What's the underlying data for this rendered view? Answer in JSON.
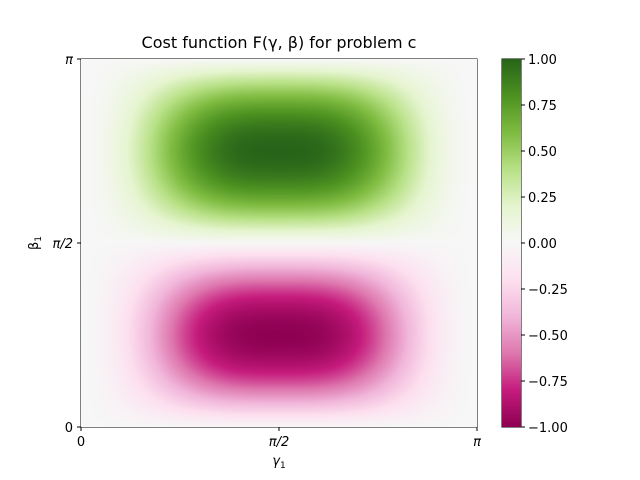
{
  "chart_data": {
    "type": "heatmap",
    "title": "Cost function F(γ, β) for problem c",
    "xlabel": "γ",
    "xlabel_sub": "1",
    "ylabel": "β",
    "ylabel_sub": "1",
    "xlim": [
      0,
      3.14159
    ],
    "ylim": [
      0,
      3.14159
    ],
    "x_ticks": [
      {
        "value": 0,
        "label": "0"
      },
      {
        "value": 1.5708,
        "label": "π/2"
      },
      {
        "value": 3.14159,
        "label": "π"
      }
    ],
    "y_ticks": [
      {
        "value": 0,
        "label": "0"
      },
      {
        "value": 1.5708,
        "label": "π/2"
      },
      {
        "value": 3.14159,
        "label": "π"
      }
    ],
    "colormap": "PiYG",
    "colormap_stops": [
      "#8e0152",
      "#c51b7d",
      "#de77ae",
      "#f1b6da",
      "#fde0ef",
      "#f7f7f7",
      "#e6f5d0",
      "#b8e186",
      "#7fbc41",
      "#4d9221",
      "#276419"
    ],
    "vmin": -1.0,
    "vmax": 1.0,
    "colorbar_ticks": [
      {
        "value": 1.0,
        "label": "1.00"
      },
      {
        "value": 0.75,
        "label": "0.75"
      },
      {
        "value": 0.5,
        "label": "0.50"
      },
      {
        "value": 0.25,
        "label": "0.25"
      },
      {
        "value": 0.0,
        "label": "0.00"
      },
      {
        "value": -0.25,
        "label": "−0.25"
      },
      {
        "value": -0.5,
        "label": "−0.50"
      },
      {
        "value": -0.75,
        "label": "−0.75"
      },
      {
        "value": -1.0,
        "label": "−1.00"
      }
    ],
    "extrema": [
      {
        "label": "max",
        "x": 1.5708,
        "y": 2.356,
        "value": 1.0
      },
      {
        "label": "min",
        "x": 1.5708,
        "y": 0.785,
        "value": -1.0
      }
    ]
  }
}
